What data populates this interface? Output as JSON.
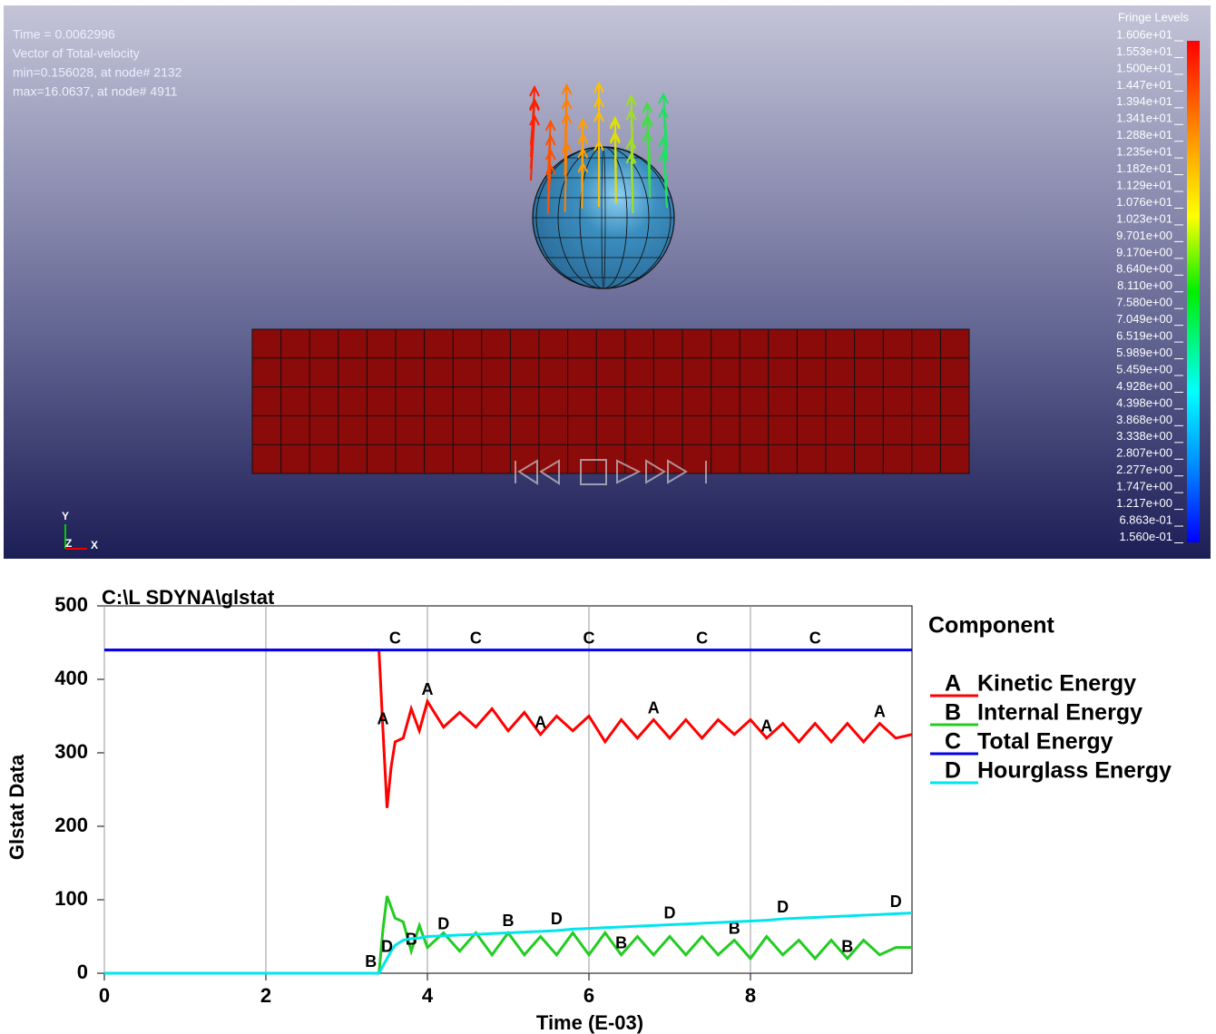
{
  "viewport": {
    "info": [
      "Time =  0.0062996",
      "Vector of Total-velocity",
      " min=0.156028, at node# 2132",
      " max=16.0637, at node# 4911"
    ],
    "fringe_title": "Fringe Levels",
    "fringe_labels": [
      "1.606e+01",
      "1.553e+01",
      "1.500e+01",
      "1.447e+01",
      "1.394e+01",
      "1.341e+01",
      "1.288e+01",
      "1.235e+01",
      "1.182e+01",
      "1.129e+01",
      "1.076e+01",
      "1.023e+01",
      "9.701e+00",
      "9.170e+00",
      "8.640e+00",
      "8.110e+00",
      "7.580e+00",
      "7.049e+00",
      "6.519e+00",
      "5.989e+00",
      "5.459e+00",
      "4.928e+00",
      "4.398e+00",
      "3.868e+00",
      "3.338e+00",
      "2.807e+00",
      "2.277e+00",
      "1.747e+00",
      "1.217e+00",
      "6.863e-01",
      "1.560e-01"
    ],
    "triad": {
      "y": "Y",
      "z": "Z",
      "x": "X"
    }
  },
  "chart_data": {
    "type": "line",
    "title": "C:\\L SDYNA\\glstat",
    "xlabel": "Time (E-03)",
    "ylabel": "Glstat Data",
    "legend_title": "Component",
    "legend": "right",
    "grid": true,
    "x": [
      0,
      3.3,
      3.4,
      3.45,
      3.5,
      3.55,
      3.6,
      3.7,
      3.8,
      3.9,
      4.0,
      4.2,
      4.4,
      4.6,
      4.8,
      5.0,
      5.2,
      5.4,
      5.6,
      5.8,
      6.0,
      6.2,
      6.4,
      6.6,
      6.8,
      7.0,
      7.2,
      7.4,
      7.6,
      7.8,
      8.0,
      8.2,
      8.4,
      8.6,
      8.8,
      9.0,
      9.2,
      9.4,
      9.6,
      9.8,
      10.0
    ],
    "series": [
      {
        "name": "Kinetic Energy",
        "marker": "A",
        "color": "#ff0000",
        "values": [
          440,
          440,
          440,
          330,
          225,
          280,
          315,
          320,
          360,
          330,
          370,
          335,
          355,
          335,
          360,
          330,
          355,
          325,
          350,
          330,
          350,
          315,
          345,
          320,
          345,
          320,
          345,
          320,
          345,
          325,
          345,
          320,
          340,
          315,
          340,
          315,
          340,
          315,
          340,
          320,
          325
        ]
      },
      {
        "name": "Internal Energy",
        "marker": "B",
        "color": "#22cc22",
        "values": [
          0,
          0,
          0,
          60,
          105,
          90,
          75,
          70,
          30,
          65,
          35,
          55,
          30,
          55,
          25,
          55,
          25,
          50,
          25,
          55,
          25,
          55,
          25,
          50,
          25,
          50,
          25,
          50,
          25,
          45,
          20,
          50,
          25,
          45,
          20,
          45,
          20,
          45,
          25,
          35,
          35
        ]
      },
      {
        "name": "Total Energy",
        "marker": "C",
        "color": "#0000ee",
        "values": [
          440,
          440,
          440,
          440,
          440,
          440,
          440,
          440,
          440,
          440,
          440,
          440,
          440,
          440,
          440,
          440,
          440,
          440,
          440,
          440,
          440,
          440,
          440,
          440,
          440,
          440,
          440,
          440,
          440,
          440,
          440,
          440,
          440,
          440,
          440,
          440,
          440,
          440,
          440,
          440,
          440
        ]
      },
      {
        "name": "Hourglass Energy",
        "marker": "D",
        "color": "#00e5ee",
        "values": [
          0,
          0,
          0,
          10,
          20,
          30,
          38,
          45,
          47,
          48,
          50,
          51,
          52,
          53,
          54,
          55,
          56,
          57,
          58,
          60,
          61,
          62,
          63,
          64,
          65,
          66,
          67,
          68,
          69,
          70,
          71,
          72,
          74,
          75,
          76,
          77,
          78,
          79,
          80,
          81,
          82
        ]
      }
    ],
    "xlim": [
      0,
      10
    ],
    "xticks": [
      0,
      2,
      4,
      6,
      8
    ],
    "ylim": [
      0,
      500
    ],
    "yticks": [
      0,
      100,
      200,
      300,
      400,
      500
    ]
  }
}
